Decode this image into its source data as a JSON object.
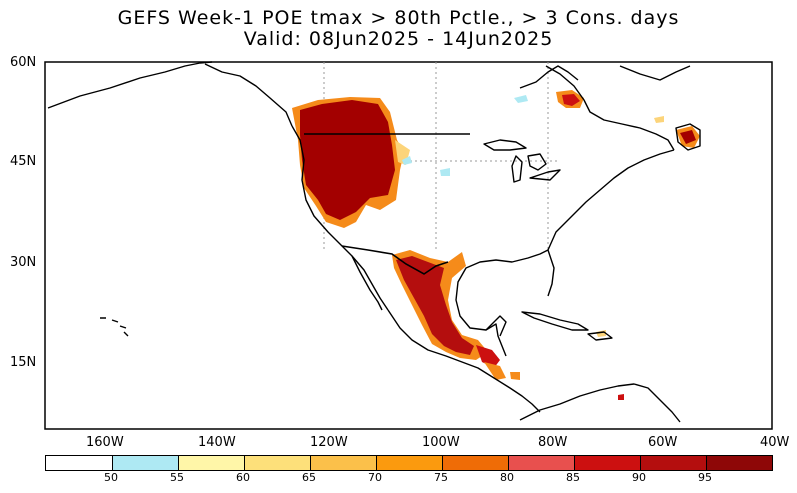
{
  "title": {
    "line1": "GEFS Week-1 POE tmax > 80th Pctle., > 3 Cons. days",
    "line2": "Valid: 08Jun2025 - 14Jun2025"
  },
  "axes": {
    "lat_labels": [
      "60N",
      "45N",
      "30N",
      "15N"
    ],
    "lon_labels": [
      "160W",
      "140W",
      "120W",
      "100W",
      "80W",
      "60W",
      "40W"
    ]
  },
  "colorbar": {
    "colors": [
      "#ffffff",
      "#aee9f3",
      "#fff6a8",
      "#fde07a",
      "#fbc04a",
      "#fb9a0e",
      "#ef6c06",
      "#e8504e",
      "#cc1010",
      "#b40e0e",
      "#8e0707"
    ],
    "labels": [
      "50",
      "55",
      "60",
      "65",
      "70",
      "75",
      "80",
      "85",
      "90",
      "95"
    ]
  },
  "map_colors": {
    "land_outline": "#000000",
    "grid": "#999999",
    "dark_red": "#a30000",
    "red": "#cc1010",
    "orange": "#f58b1a",
    "yellow": "#fcd47a",
    "cyan": "#aee9f3"
  }
}
